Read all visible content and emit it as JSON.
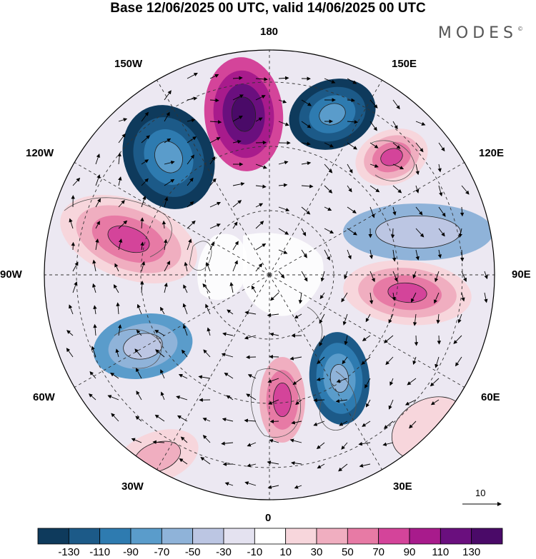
{
  "title": "Base 12/06/2025 00 UTC, valid 14/06/2025 00 UTC",
  "brand": {
    "text": "MODES",
    "mark": "©"
  },
  "longitude_labels": {
    "lon_180": "180",
    "lon_150w": "150W",
    "lon_150e": "150E",
    "lon_120w": "120W",
    "lon_120e": "120E",
    "lon_90w": "90W",
    "lon_90e": "90E",
    "lon_60w": "60W",
    "lon_60e": "60E",
    "lon_30w": "30W",
    "lon_30e": "30E",
    "lon_0": "0"
  },
  "wind_reference": {
    "label": "10"
  },
  "colorbar": {
    "labels": [
      "-130",
      "-110",
      "-90",
      "-70",
      "-50",
      "-30",
      "-10",
      "10",
      "30",
      "50",
      "70",
      "90",
      "110",
      "130"
    ],
    "colors": [
      "#0e3a5c",
      "#1c5a88",
      "#2e7bb0",
      "#5a9ccb",
      "#8fb3d9",
      "#bcc6e3",
      "#e4e2f0",
      "#ffffff",
      "#f7d6dc",
      "#f0aec0",
      "#e77aa5",
      "#d4449a",
      "#a81b8c",
      "#6a0f7e",
      "#4a0a68"
    ]
  },
  "projection": "north polar stereographic",
  "anomaly_centers": [
    {
      "lon": "165W",
      "sign": "positive",
      "max_level": "130"
    },
    {
      "lon": "160E",
      "sign": "negative",
      "max_level": "-110"
    },
    {
      "lon": "135W",
      "sign": "negative",
      "max_level": "-110"
    },
    {
      "lon": "120E",
      "sign": "positive",
      "max_level": "90"
    },
    {
      "lon": "100W",
      "sign": "positive",
      "max_level": "90"
    },
    {
      "lon": "95E",
      "sign": "negative",
      "max_level": "-50"
    },
    {
      "lon": "90E",
      "sign": "positive",
      "max_level": "90"
    },
    {
      "lon": "65W",
      "sign": "negative",
      "max_level": "-70"
    },
    {
      "lon": "45E",
      "sign": "negative",
      "max_level": "-90"
    },
    {
      "lon": "10E",
      "sign": "positive",
      "max_level": "90"
    },
    {
      "lon": "30W",
      "sign": "positive",
      "max_level": "50"
    },
    {
      "lon": "60E",
      "sign": "positive",
      "max_level": "30"
    }
  ]
}
